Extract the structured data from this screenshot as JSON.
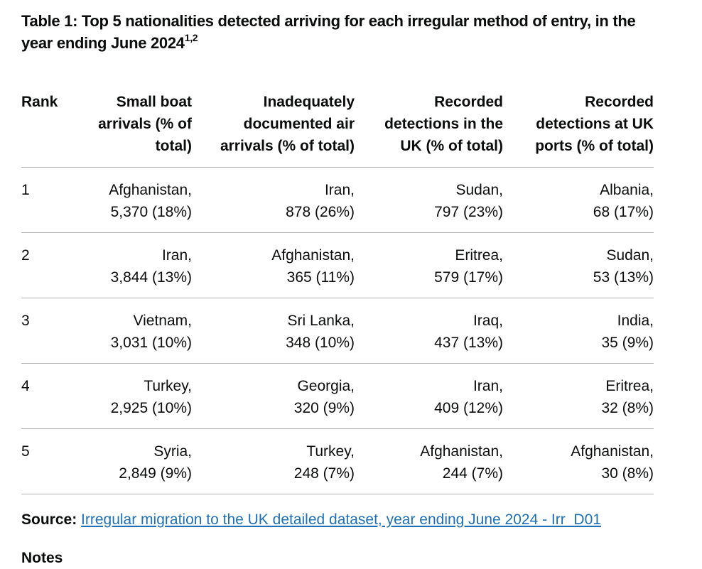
{
  "caption": {
    "text": "Table 1: Top 5 nationalities detected arriving for each irregular method of entry, in the year ending June 2024",
    "footnote_refs": "1,2"
  },
  "table": {
    "headers": [
      [
        "Rank"
      ],
      [
        "Small boat",
        "arrivals (% of",
        "total)"
      ],
      [
        "Inadequately",
        "documented air",
        "arrivals (% of total)"
      ],
      [
        "Recorded",
        "detections in the",
        "UK (% of total)"
      ],
      [
        "Recorded",
        "detections at UK",
        "ports (% of total)"
      ]
    ],
    "rows": [
      {
        "rank": "1",
        "cells": [
          [
            "Afghanistan,",
            "5,370 (18%)"
          ],
          [
            "Iran,",
            "878 (26%)"
          ],
          [
            "Sudan,",
            "797 (23%)"
          ],
          [
            "Albania,",
            "68 (17%)"
          ]
        ]
      },
      {
        "rank": "2",
        "cells": [
          [
            "Iran,",
            "3,844 (13%)"
          ],
          [
            "Afghanistan,",
            "365 (11%)"
          ],
          [
            "Eritrea,",
            "579 (17%)"
          ],
          [
            "Sudan,",
            "53 (13%)"
          ]
        ]
      },
      {
        "rank": "3",
        "cells": [
          [
            "Vietnam,",
            "3,031 (10%)"
          ],
          [
            "Sri Lanka,",
            "348 (10%)"
          ],
          [
            "Iraq,",
            "437 (13%)"
          ],
          [
            "India,",
            "35 (9%)"
          ]
        ]
      },
      {
        "rank": "4",
        "cells": [
          [
            "Turkey,",
            "2,925 (10%)"
          ],
          [
            "Georgia,",
            "320 (9%)"
          ],
          [
            "Iran,",
            "409 (12%)"
          ],
          [
            "Eritrea,",
            "32 (8%)"
          ]
        ]
      },
      {
        "rank": "5",
        "cells": [
          [
            "Syria,",
            "2,849 (9%)"
          ],
          [
            "Turkey,",
            "248 (7%)"
          ],
          [
            "Afghanistan,",
            "244 (7%)"
          ],
          [
            "Afghanistan,",
            "30 (8%)"
          ]
        ]
      }
    ]
  },
  "source": {
    "label": "Source:",
    "link_text": "Irregular migration to the UK detailed dataset, year ending June 2024 - Irr_D01"
  },
  "notes_heading": "Notes"
}
